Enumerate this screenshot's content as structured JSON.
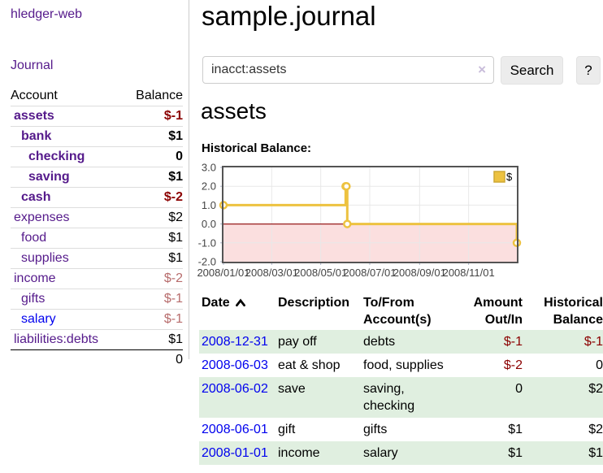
{
  "app": {
    "brand": "hledger-web"
  },
  "nav": {
    "journal": "Journal"
  },
  "sidebar": {
    "account_header": "Account",
    "balance_header": "Balance",
    "accounts": [
      {
        "name": "assets",
        "balance": "$-1",
        "indent": 1,
        "bold": true,
        "name_style": "purple",
        "balance_style": "neg"
      },
      {
        "name": "bank",
        "balance": "$1",
        "indent": 2,
        "bold": true,
        "name_style": "purple",
        "balance_style": "plain"
      },
      {
        "name": "checking",
        "balance": "0",
        "indent": 3,
        "bold": true,
        "name_style": "purple",
        "balance_style": "plain"
      },
      {
        "name": "saving",
        "balance": "$1",
        "indent": 3,
        "bold": true,
        "name_style": "purple",
        "balance_style": "plain"
      },
      {
        "name": "cash",
        "balance": "$-2",
        "indent": 2,
        "bold": true,
        "name_style": "purple",
        "balance_style": "neg"
      },
      {
        "name": "expenses",
        "balance": "$2",
        "indent": 1,
        "bold": false,
        "name_style": "purple",
        "balance_style": "plain"
      },
      {
        "name": "food",
        "balance": "$1",
        "indent": 2,
        "bold": false,
        "name_style": "purple",
        "balance_style": "plain"
      },
      {
        "name": "supplies",
        "balance": "$1",
        "indent": 2,
        "bold": false,
        "name_style": "purple",
        "balance_style": "plain"
      },
      {
        "name": "income",
        "balance": "$-2",
        "indent": 1,
        "bold": false,
        "name_style": "purple",
        "balance_style": "neg-muted"
      },
      {
        "name": "gifts",
        "balance": "$-1",
        "indent": 2,
        "bold": false,
        "name_style": "purple",
        "balance_style": "neg-muted"
      },
      {
        "name": "salary",
        "balance": "$-1",
        "indent": 2,
        "bold": false,
        "name_style": "blue",
        "balance_style": "neg-muted"
      },
      {
        "name": "liabilities:debts",
        "balance": "$1",
        "indent": 1,
        "bold": false,
        "name_style": "purple",
        "balance_style": "plain"
      }
    ],
    "total": "0"
  },
  "header": {
    "title": "sample.journal"
  },
  "search": {
    "value": "inacct:assets",
    "clear_icon": "×",
    "button": "Search",
    "help": "?"
  },
  "account_page": {
    "heading": "assets",
    "chart_label": "Historical Balance:"
  },
  "register": {
    "columns": {
      "date": "Date",
      "description": "Description",
      "tofrom": "To/From Account(s)",
      "amount": "Amount Out/In",
      "balance": "Historical Balance"
    },
    "sort": {
      "column": "date",
      "direction": "ascending"
    },
    "rows": [
      {
        "date": "2008-12-31",
        "description": "pay off",
        "accounts": "debts",
        "amount": "$-1",
        "amount_negative": true,
        "balance": "$-1",
        "balance_negative": true
      },
      {
        "date": "2008-06-03",
        "description": "eat & shop",
        "accounts": "food, supplies",
        "amount": "$-2",
        "amount_negative": true,
        "balance": "0",
        "balance_negative": false
      },
      {
        "date": "2008-06-02",
        "description": "save",
        "accounts": "saving, checking",
        "amount": "0",
        "amount_negative": false,
        "balance": "$2",
        "balance_negative": false
      },
      {
        "date": "2008-06-01",
        "description": "gift",
        "accounts": "gifts",
        "amount": "$1",
        "amount_negative": false,
        "balance": "$2",
        "balance_negative": false
      },
      {
        "date": "2008-01-01",
        "description": "income",
        "accounts": "salary",
        "amount": "$1",
        "amount_negative": false,
        "balance": "$1",
        "balance_negative": false
      }
    ]
  },
  "chart_data": {
    "type": "line",
    "title": "Historical Balance:",
    "style": "steps",
    "series": [
      {
        "name": "$",
        "color": "#edc240",
        "points": [
          {
            "date": "2008/01/01",
            "day": 0,
            "value": 1.0
          },
          {
            "date": "2008/06/01",
            "day": 152,
            "value": 2.0
          },
          {
            "date": "2008/06/02",
            "day": 153,
            "value": 2.0
          },
          {
            "date": "2008/06/03",
            "day": 154,
            "value": 0.0
          },
          {
            "date": "2008/12/31",
            "day": 365,
            "value": -1.0
          }
        ]
      }
    ],
    "x_ticks": [
      {
        "label": "2008/01/01",
        "day": 0
      },
      {
        "label": "2008/03/01",
        "day": 60
      },
      {
        "label": "2008/05/01",
        "day": 121
      },
      {
        "label": "2008/07/01",
        "day": 182
      },
      {
        "label": "2008/09/01",
        "day": 244
      },
      {
        "label": "2008/11/01",
        "day": 305
      }
    ],
    "y_ticks": [
      3.0,
      2.0,
      1.0,
      0.0,
      -1.0,
      -2.0
    ],
    "ylim": [
      -2,
      3
    ],
    "xlim_days": [
      0,
      365
    ],
    "grid": true,
    "legend_position": "top-right",
    "legend_label": "$",
    "zero_line_color": "#971c1c",
    "negative_region_color": "#fbdfdf",
    "gridline_color": "#e8e8e8",
    "border_color": "#545454"
  },
  "colors": {
    "link_purple": "#551a8b",
    "link_blue": "#0000ee",
    "negative": "#8b0000",
    "negative_muted": "#b76c6c",
    "row_green": "#e0efe0",
    "series_yellow": "#edc240"
  }
}
